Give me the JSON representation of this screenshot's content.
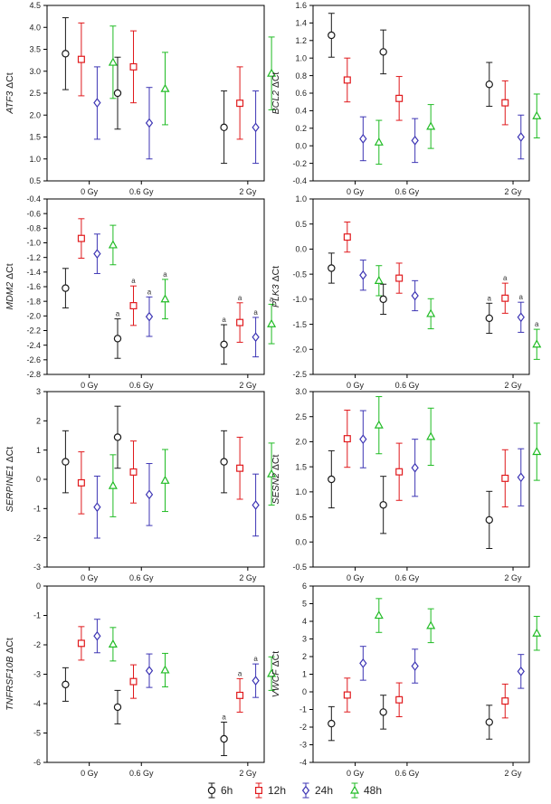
{
  "legend": [
    {
      "key": "6h",
      "label": "6h",
      "color": "#1a1a1a",
      "marker": "circle"
    },
    {
      "key": "12h",
      "label": "12h",
      "color": "#e0191c",
      "marker": "square"
    },
    {
      "key": "24h",
      "label": "24h",
      "color": "#3d35b4",
      "marker": "diamond"
    },
    {
      "key": "48h",
      "label": "48h",
      "color": "#1fbb23",
      "marker": "triangle"
    }
  ],
  "chart_data": [
    {
      "type": "scatter",
      "ylabel_gene": "ATF3",
      "ylabel_suffix": " ΔCt",
      "categories": [
        "0 Gy",
        "0.6 Gy",
        "2 Gy"
      ],
      "ylim": [
        0.5,
        4.5
      ],
      "yticks": [
        "4.5",
        "4.0",
        "3.5",
        "3.0",
        "2.5",
        "2.0",
        "1.5",
        "1.0",
        "0.5"
      ],
      "series": [
        {
          "name": "6h",
          "values": [
            3.4,
            2.5,
            1.72
          ],
          "lower": [
            2.58,
            1.68,
            0.9
          ],
          "upper": [
            4.22,
            3.32,
            2.55
          ],
          "labels": [
            "",
            "",
            ""
          ]
        },
        {
          "name": "12h",
          "values": [
            3.27,
            3.1,
            2.27
          ],
          "lower": [
            2.44,
            2.28,
            1.45
          ],
          "upper": [
            4.1,
            3.92,
            3.1
          ],
          "labels": [
            "",
            "",
            ""
          ]
        },
        {
          "name": "24h",
          "values": [
            2.28,
            1.82,
            1.72
          ],
          "lower": [
            1.45,
            1.0,
            0.9
          ],
          "upper": [
            3.1,
            2.63,
            2.55
          ],
          "labels": [
            "",
            "",
            ""
          ]
        },
        {
          "name": "48h",
          "values": [
            3.2,
            2.6,
            2.95
          ],
          "lower": [
            2.38,
            1.78,
            2.12
          ],
          "upper": [
            4.03,
            3.43,
            3.78
          ],
          "labels": [
            "",
            "",
            ""
          ]
        }
      ]
    },
    {
      "type": "scatter",
      "ylabel_gene": "BCL2",
      "ylabel_suffix": " ΔCt",
      "categories": [
        "0 Gy",
        "0.6 Gy",
        "2 Gy"
      ],
      "ylim": [
        -0.4,
        1.6
      ],
      "yticks": [
        "1.6",
        "1.4",
        "1.2",
        "1.0",
        "0.8",
        "0.6",
        "0.4",
        "0.2",
        "0.0",
        "-0.2",
        "-0.4"
      ],
      "series": [
        {
          "name": "6h",
          "values": [
            1.26,
            1.07,
            0.7
          ],
          "lower": [
            1.01,
            0.82,
            0.45
          ],
          "upper": [
            1.51,
            1.32,
            0.95
          ],
          "labels": [
            "",
            "",
            ""
          ]
        },
        {
          "name": "12h",
          "values": [
            0.75,
            0.54,
            0.49
          ],
          "lower": [
            0.5,
            0.29,
            0.24
          ],
          "upper": [
            1.0,
            0.79,
            0.74
          ],
          "labels": [
            "",
            "",
            ""
          ]
        },
        {
          "name": "24h",
          "values": [
            0.08,
            0.06,
            0.1
          ],
          "lower": [
            -0.17,
            -0.19,
            -0.15
          ],
          "upper": [
            0.33,
            0.31,
            0.35
          ],
          "labels": [
            "",
            "",
            ""
          ]
        },
        {
          "name": "48h",
          "values": [
            0.04,
            0.22,
            0.34
          ],
          "lower": [
            -0.21,
            -0.03,
            0.09
          ],
          "upper": [
            0.29,
            0.47,
            0.59
          ],
          "labels": [
            "",
            "",
            ""
          ]
        }
      ]
    },
    {
      "type": "scatter",
      "ylabel_gene": "MDM2",
      "ylabel_suffix": " ΔCt",
      "categories": [
        "0 Gy",
        "0.6 Gy",
        "2 Gy"
      ],
      "ylim": [
        -2.8,
        -0.4
      ],
      "yticks": [
        "-0.4",
        "-0.6",
        "-0.8",
        "-1.0",
        "-1.2",
        "-1.4",
        "-1.6",
        "-1.8",
        "-2.0",
        "-2.2",
        "-2.4",
        "-2.6",
        "-2.8"
      ],
      "series": [
        {
          "name": "6h",
          "values": [
            -1.62,
            -2.31,
            -2.39
          ],
          "lower": [
            -1.89,
            -2.58,
            -2.66
          ],
          "upper": [
            -1.35,
            -2.04,
            -2.12
          ],
          "labels": [
            "",
            "a",
            "a"
          ]
        },
        {
          "name": "12h",
          "values": [
            -0.94,
            -1.86,
            -2.09
          ],
          "lower": [
            -1.21,
            -2.13,
            -2.36
          ],
          "upper": [
            -0.67,
            -1.59,
            -1.82
          ],
          "labels": [
            "",
            "a",
            "a"
          ]
        },
        {
          "name": "24h",
          "values": [
            -1.15,
            -2.01,
            -2.29
          ],
          "lower": [
            -1.42,
            -2.28,
            -2.56
          ],
          "upper": [
            -0.88,
            -1.74,
            -2.02
          ],
          "labels": [
            "",
            "a",
            "a"
          ]
        },
        {
          "name": "48h",
          "values": [
            -1.03,
            -1.77,
            -2.11
          ],
          "lower": [
            -1.3,
            -2.04,
            -2.38
          ],
          "upper": [
            -0.76,
            -1.5,
            -1.84
          ],
          "labels": [
            "",
            "a",
            "a"
          ]
        }
      ]
    },
    {
      "type": "scatter",
      "ylabel_gene": "PLK3",
      "ylabel_suffix": " ΔCt",
      "categories": [
        "0 Gy",
        "0.6 Gy",
        "2 Gy"
      ],
      "ylim": [
        -2.5,
        1.0
      ],
      "yticks": [
        "1.0",
        "0.5",
        "0.0",
        "-0.5",
        "-1.0",
        "-1.5",
        "-2.0",
        "-2.5"
      ],
      "series": [
        {
          "name": "6h",
          "values": [
            -0.38,
            -1.0,
            -1.38
          ],
          "lower": [
            -0.68,
            -1.3,
            -1.68
          ],
          "upper": [
            -0.08,
            -0.7,
            -1.08
          ],
          "labels": [
            "",
            "",
            "a"
          ]
        },
        {
          "name": "12h",
          "values": [
            0.24,
            -0.58,
            -0.98
          ],
          "lower": [
            -0.06,
            -0.88,
            -1.28
          ],
          "upper": [
            0.54,
            -0.28,
            -0.68
          ],
          "labels": [
            "",
            "",
            "a"
          ]
        },
        {
          "name": "24h",
          "values": [
            -0.52,
            -0.93,
            -1.36
          ],
          "lower": [
            -0.82,
            -1.23,
            -1.66
          ],
          "upper": [
            -0.22,
            -0.63,
            -1.06
          ],
          "labels": [
            "",
            "",
            "a"
          ]
        },
        {
          "name": "48h",
          "values": [
            -0.63,
            -1.29,
            -1.9
          ],
          "lower": [
            -0.93,
            -1.59,
            -2.2
          ],
          "upper": [
            -0.33,
            -0.99,
            -1.6
          ],
          "labels": [
            "",
            "",
            "a"
          ]
        }
      ]
    },
    {
      "type": "scatter",
      "ylabel_gene": "SERPINE1",
      "ylabel_suffix": " ΔCt",
      "categories": [
        "0 Gy",
        "0.6 Gy",
        "2 Gy"
      ],
      "ylim": [
        -3,
        3
      ],
      "yticks": [
        "3",
        "2",
        "1",
        "0",
        "-1",
        "-2",
        "-3"
      ],
      "series": [
        {
          "name": "6h",
          "values": [
            0.6,
            1.44,
            0.6
          ],
          "lower": [
            -0.46,
            0.38,
            -0.46
          ],
          "upper": [
            1.66,
            2.5,
            1.66
          ],
          "labels": [
            "",
            "",
            ""
          ]
        },
        {
          "name": "12h",
          "values": [
            -0.12,
            0.25,
            0.38
          ],
          "lower": [
            -1.18,
            -0.81,
            -0.68
          ],
          "upper": [
            0.94,
            1.31,
            1.44
          ],
          "labels": [
            "",
            "",
            ""
          ]
        },
        {
          "name": "24h",
          "values": [
            -0.95,
            -0.52,
            -0.88
          ],
          "lower": [
            -2.01,
            -1.58,
            -1.94
          ],
          "upper": [
            0.11,
            0.54,
            0.18
          ],
          "labels": [
            "",
            "",
            ""
          ]
        },
        {
          "name": "48h",
          "values": [
            -0.22,
            -0.04,
            0.18
          ],
          "lower": [
            -1.28,
            -1.1,
            -0.88
          ],
          "upper": [
            0.84,
            1.02,
            1.24
          ],
          "labels": [
            "",
            "",
            ""
          ]
        }
      ]
    },
    {
      "type": "scatter",
      "ylabel_gene": "SESN2",
      "ylabel_suffix": " ΔCt",
      "categories": [
        "0 Gy",
        "0.6 Gy",
        "2 Gy"
      ],
      "ylim": [
        -0.5,
        3.0
      ],
      "yticks": [
        "3.0",
        "2.5",
        "2.0",
        "1.5",
        "1.0",
        "0.5",
        "0.0",
        "-0.5"
      ],
      "series": [
        {
          "name": "6h",
          "values": [
            1.25,
            0.74,
            0.44
          ],
          "lower": [
            0.68,
            0.17,
            -0.13
          ],
          "upper": [
            1.82,
            1.31,
            1.01
          ],
          "labels": [
            "",
            "",
            ""
          ]
        },
        {
          "name": "12h",
          "values": [
            2.06,
            1.4,
            1.27
          ],
          "lower": [
            1.49,
            0.83,
            0.7
          ],
          "upper": [
            2.63,
            1.97,
            1.84
          ],
          "labels": [
            "",
            "",
            ""
          ]
        },
        {
          "name": "24h",
          "values": [
            2.05,
            1.48,
            1.29
          ],
          "lower": [
            1.48,
            0.91,
            0.72
          ],
          "upper": [
            2.62,
            2.05,
            1.86
          ],
          "labels": [
            "",
            "",
            ""
          ]
        },
        {
          "name": "48h",
          "values": [
            2.33,
            2.1,
            1.8
          ],
          "lower": [
            1.76,
            1.53,
            1.23
          ],
          "upper": [
            2.9,
            2.67,
            2.37
          ],
          "labels": [
            "",
            "",
            ""
          ]
        }
      ]
    },
    {
      "type": "scatter",
      "ylabel_gene": "TNFRSF10B",
      "ylabel_suffix": " ΔCt",
      "categories": [
        "0 Gy",
        "0.6 Gy",
        "2 Gy"
      ],
      "ylim": [
        -6,
        0
      ],
      "yticks": [
        "0",
        "-1",
        "-2",
        "-3",
        "-4",
        "-5",
        "-6"
      ],
      "series": [
        {
          "name": "6h",
          "values": [
            -3.35,
            -4.12,
            -5.2
          ],
          "lower": [
            -3.92,
            -4.69,
            -5.77
          ],
          "upper": [
            -2.78,
            -3.55,
            -4.63
          ],
          "labels": [
            "",
            "",
            "a"
          ]
        },
        {
          "name": "12h",
          "values": [
            -1.95,
            -3.25,
            -3.72
          ],
          "lower": [
            -2.52,
            -3.82,
            -4.29
          ],
          "upper": [
            -1.38,
            -2.68,
            -3.15
          ],
          "labels": [
            "",
            "",
            "a"
          ]
        },
        {
          "name": "24h",
          "values": [
            -1.7,
            -2.88,
            -3.22
          ],
          "lower": [
            -2.27,
            -3.45,
            -3.79
          ],
          "upper": [
            -1.13,
            -2.31,
            -2.65
          ],
          "labels": [
            "",
            "",
            "a"
          ]
        },
        {
          "name": "48h",
          "values": [
            -1.98,
            -2.86,
            -2.98
          ],
          "lower": [
            -2.55,
            -3.43,
            -3.55
          ],
          "upper": [
            -1.41,
            -2.29,
            -2.41
          ],
          "labels": [
            "",
            "",
            ""
          ]
        }
      ]
    },
    {
      "type": "scatter",
      "ylabel_gene": "VWCF",
      "ylabel_suffix": " ΔCt",
      "categories": [
        "0 Gy",
        "0.6 Gy",
        "2 Gy"
      ],
      "ylim": [
        -4,
        6
      ],
      "yticks": [
        "6",
        "5",
        "4",
        "3",
        "2",
        "1",
        "0",
        "-1",
        "-2",
        "-3",
        "-4"
      ],
      "series": [
        {
          "name": "6h",
          "values": [
            -1.8,
            -1.15,
            -1.72
          ],
          "lower": [
            -2.76,
            -2.11,
            -2.68
          ],
          "upper": [
            -0.84,
            -0.19,
            -0.76
          ],
          "labels": [
            "",
            "",
            ""
          ]
        },
        {
          "name": "12h",
          "values": [
            -0.18,
            -0.45,
            -0.52
          ],
          "lower": [
            -1.14,
            -1.41,
            -1.48
          ],
          "upper": [
            0.78,
            0.51,
            0.44
          ],
          "labels": [
            "",
            "",
            ""
          ]
        },
        {
          "name": "24h",
          "values": [
            1.62,
            1.46,
            1.16
          ],
          "lower": [
            0.66,
            0.5,
            0.2
          ],
          "upper": [
            2.58,
            2.42,
            2.12
          ],
          "labels": [
            "",
            "",
            ""
          ]
        },
        {
          "name": "48h",
          "values": [
            4.33,
            3.75,
            3.32
          ],
          "lower": [
            3.37,
            2.79,
            2.36
          ],
          "upper": [
            5.29,
            4.71,
            4.28
          ],
          "labels": [
            "",
            "",
            ""
          ]
        }
      ]
    }
  ]
}
